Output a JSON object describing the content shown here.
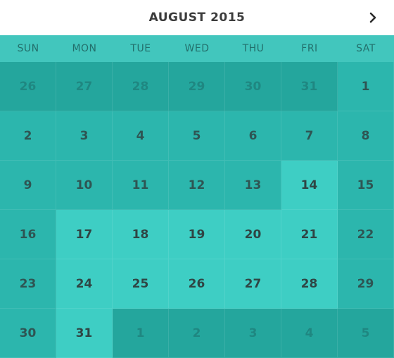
{
  "header": {
    "title": "AUGUST 2015",
    "next_icon": "chevron-right-icon"
  },
  "weekdays": [
    "SUN",
    "MON",
    "TUE",
    "WED",
    "THU",
    "FRI",
    "SAT"
  ],
  "weeks": [
    [
      {
        "d": "26",
        "t": "other"
      },
      {
        "d": "27",
        "t": "other"
      },
      {
        "d": "28",
        "t": "other"
      },
      {
        "d": "29",
        "t": "other"
      },
      {
        "d": "30",
        "t": "other"
      },
      {
        "d": "31",
        "t": "other"
      },
      {
        "d": "1",
        "t": "cur"
      }
    ],
    [
      {
        "d": "2",
        "t": "cur"
      },
      {
        "d": "3",
        "t": "cur"
      },
      {
        "d": "4",
        "t": "cur"
      },
      {
        "d": "5",
        "t": "cur"
      },
      {
        "d": "6",
        "t": "cur"
      },
      {
        "d": "7",
        "t": "cur"
      },
      {
        "d": "8",
        "t": "cur"
      }
    ],
    [
      {
        "d": "9",
        "t": "cur"
      },
      {
        "d": "10",
        "t": "cur"
      },
      {
        "d": "11",
        "t": "cur"
      },
      {
        "d": "12",
        "t": "cur"
      },
      {
        "d": "13",
        "t": "cur"
      },
      {
        "d": "14",
        "t": "hl"
      },
      {
        "d": "15",
        "t": "cur"
      }
    ],
    [
      {
        "d": "16",
        "t": "cur"
      },
      {
        "d": "17",
        "t": "hl"
      },
      {
        "d": "18",
        "t": "hl"
      },
      {
        "d": "19",
        "t": "hl"
      },
      {
        "d": "20",
        "t": "hl"
      },
      {
        "d": "21",
        "t": "hl"
      },
      {
        "d": "22",
        "t": "cur"
      }
    ],
    [
      {
        "d": "23",
        "t": "cur"
      },
      {
        "d": "24",
        "t": "hl"
      },
      {
        "d": "25",
        "t": "hl"
      },
      {
        "d": "26",
        "t": "hl"
      },
      {
        "d": "27",
        "t": "hl"
      },
      {
        "d": "28",
        "t": "hl"
      },
      {
        "d": "29",
        "t": "cur"
      }
    ],
    [
      {
        "d": "30",
        "t": "cur"
      },
      {
        "d": "31",
        "t": "hl"
      },
      {
        "d": "1",
        "t": "other"
      },
      {
        "d": "2",
        "t": "other"
      },
      {
        "d": "3",
        "t": "other"
      },
      {
        "d": "4",
        "t": "other"
      },
      {
        "d": "5",
        "t": "other"
      }
    ]
  ],
  "colors": {
    "other_month": "#24a69d",
    "current_month": "#2cb6ad",
    "highlighted": "#3ecec4",
    "weekday_bar": "#42c6bd",
    "header_bg": "#ffffff"
  }
}
